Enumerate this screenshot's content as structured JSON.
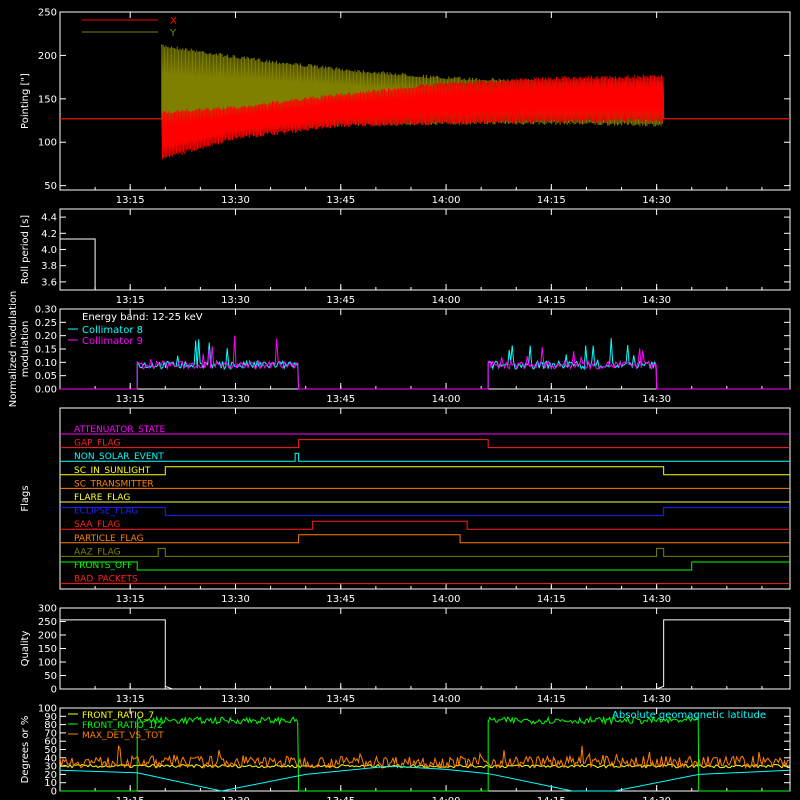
{
  "chart_data": [
    {
      "type": "line",
      "ylabel": "Pointing [\"]",
      "ylim": [
        45,
        250
      ],
      "yticks": [
        50,
        100,
        150,
        200,
        250
      ],
      "xticks": [
        "13:15",
        "13:30",
        "13:45",
        "14:00",
        "14:15",
        "14:30"
      ],
      "xtick_minutes": [
        15,
        30,
        45,
        60,
        75,
        90
      ],
      "xlim_minutes": [
        5,
        109
      ],
      "legend": "top-left",
      "series": [
        {
          "name": "X",
          "color": "#ff0000",
          "segments": [
            {
              "t": 5,
              "lo": 127,
              "hi": 127
            },
            {
              "t": 20,
              "lo": 80,
              "hi": 137
            },
            {
              "t": 30,
              "lo": 103,
              "hi": 142
            },
            {
              "t": 45,
              "lo": 117,
              "hi": 157
            },
            {
              "t": 60,
              "lo": 120,
              "hi": 170
            },
            {
              "t": 75,
              "lo": 122,
              "hi": 176
            },
            {
              "t": 91,
              "lo": 123,
              "hi": 178
            },
            {
              "t": 109,
              "lo": 127,
              "hi": 127
            }
          ]
        },
        {
          "name": "Y",
          "color": "#808000",
          "segments": [
            {
              "t": 5,
              "lo": 127,
              "hi": 127
            },
            {
              "t": 20,
              "lo": 92,
              "hi": 213
            },
            {
              "t": 30,
              "lo": 110,
              "hi": 200
            },
            {
              "t": 45,
              "lo": 118,
              "hi": 186
            },
            {
              "t": 60,
              "lo": 120,
              "hi": 176
            },
            {
              "t": 75,
              "lo": 120,
              "hi": 172
            },
            {
              "t": 91,
              "lo": 118,
              "hi": 172
            },
            {
              "t": 109,
              "lo": 127,
              "hi": 127
            }
          ]
        }
      ]
    },
    {
      "type": "line",
      "ylabel": "Roll period [s]",
      "ylim": [
        3.5,
        4.5
      ],
      "yticks": [
        3.6,
        3.8,
        4.0,
        4.2,
        4.4
      ],
      "xticks": [
        "13:15",
        "13:30",
        "13:45",
        "14:00",
        "14:15",
        "14:30"
      ],
      "series": [
        {
          "color": "#ffffff",
          "x": [
            5,
            10,
            10
          ],
          "y": [
            4.13,
            4.13,
            3.5
          ]
        }
      ]
    },
    {
      "type": "line",
      "ylabel": "Normalized modulation",
      "ylim": [
        0,
        0.3
      ],
      "yticks": [
        0.0,
        0.05,
        0.1,
        0.15,
        0.2,
        0.25,
        0.3
      ],
      "xticks": [
        "13:15",
        "13:30",
        "13:45",
        "14:00",
        "14:15",
        "14:30"
      ],
      "annotation": "Energy band: 12-25 keV",
      "series": [
        {
          "name": "Collimator 8",
          "color": "#00ffff",
          "baseline": 0.09,
          "active": [
            [
              16,
              39
            ],
            [
              66,
              90
            ]
          ]
        },
        {
          "name": "Collimator 9",
          "color": "#ff00ff",
          "baseline": 0.09,
          "active": [
            [
              16,
              39
            ],
            [
              66,
              90
            ]
          ]
        }
      ]
    },
    {
      "type": "line",
      "ylabel": "Flags",
      "xticks": [
        "13:15",
        "13:30",
        "13:45",
        "14:00",
        "14:15",
        "14:30"
      ],
      "flags": [
        {
          "name": "ATTENUATOR_STATE",
          "color": "#ff00ff",
          "steps": []
        },
        {
          "name": "GAP_FLAG",
          "color": "#ff2020",
          "steps": [
            [
              39,
              66
            ]
          ]
        },
        {
          "name": "NON_SOLAR_EVENT",
          "color": "#00ffff",
          "steps": [
            [
              38.5,
              39
            ]
          ]
        },
        {
          "name": "SC_IN_SUNLIGHT",
          "color": "#ffff00",
          "steps": [
            [
              20,
              91
            ]
          ]
        },
        {
          "name": "SC_TRANSMITTER",
          "color": "#ff8000",
          "steps": []
        },
        {
          "name": "FLARE_FLAG",
          "color": "#ffff40",
          "steps": []
        },
        {
          "name": "ECLIPSE_FLAG",
          "color": "#2020ff",
          "steps": [
            [
              5,
              20
            ],
            [
              91,
              109
            ]
          ]
        },
        {
          "name": "SAA_FLAG",
          "color": "#ff2020",
          "steps": [
            [
              41,
              63
            ]
          ]
        },
        {
          "name": "PARTICLE_FLAG",
          "color": "#ff8000",
          "steps": [
            [
              39,
              62
            ]
          ]
        },
        {
          "name": "AAZ_FLAG",
          "color": "#808000",
          "steps": [
            [
              19,
              20
            ],
            [
              90,
              91
            ]
          ]
        },
        {
          "name": "FRONTS_OFF",
          "color": "#00ff00",
          "steps": [
            [
              5,
              16
            ],
            [
              95,
              109
            ]
          ]
        },
        {
          "name": "BAD_PACKETS",
          "color": "#ff2020",
          "steps": []
        }
      ]
    },
    {
      "type": "line",
      "ylabel": "Quality",
      "ylim": [
        0,
        300
      ],
      "yticks": [
        0,
        50,
        100,
        150,
        200,
        250,
        300
      ],
      "xticks": [
        "13:15",
        "13:30",
        "13:45",
        "14:00",
        "14:15",
        "14:30"
      ],
      "series": [
        {
          "color": "#ffffff",
          "x": [
            5,
            20,
            20,
            21,
            90,
            91,
            91,
            109
          ],
          "y": [
            256,
            256,
            10,
            0,
            0,
            10,
            256,
            256
          ]
        }
      ]
    },
    {
      "type": "line",
      "ylabel": "Degrees or %",
      "ylim": [
        0,
        100
      ],
      "yticks": [
        0,
        10,
        20,
        30,
        40,
        50,
        60,
        70,
        80,
        90,
        100
      ],
      "xticks": [
        "13:15",
        "13:30",
        "13:45",
        "14:00",
        "14:15",
        "14:30"
      ],
      "annotation": "Absolute geomagnetic latitude",
      "series": [
        {
          "name": "FRONT_RATIO_7",
          "color": "#ffff00",
          "baseline": 30
        },
        {
          "name": "FRONT_RATIO_1/2",
          "color": "#00ff00",
          "baseline": 85,
          "active": [
            [
              16,
              39
            ],
            [
              66,
              96
            ]
          ]
        },
        {
          "name": "MAX_DET_VS_TOT",
          "color": "#ff8000",
          "baseline": 35
        },
        {
          "name": "Absolute geomagnetic latitude",
          "color": "#00ffff",
          "x": [
            5,
            16,
            28,
            40,
            52,
            60,
            66,
            78,
            84,
            96,
            109
          ],
          "y": [
            25,
            22,
            0,
            20,
            30,
            26,
            21,
            0,
            0,
            20,
            25
          ]
        }
      ]
    }
  ]
}
